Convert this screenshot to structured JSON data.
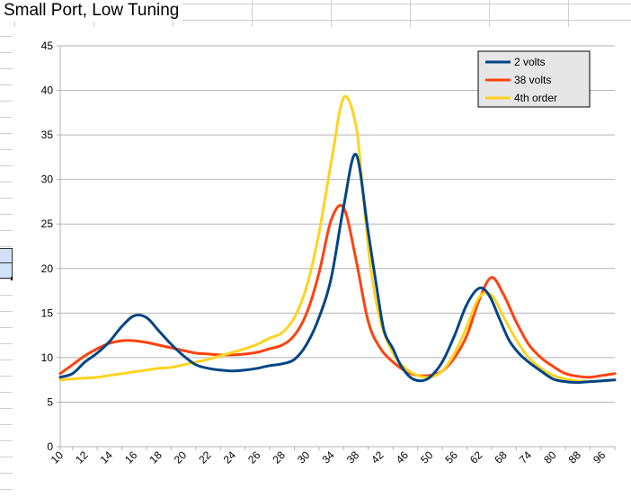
{
  "sheet": {
    "title": "Small Port, Low Tuning"
  },
  "colors": {
    "series_2v": "#004586",
    "series_38v": "#ff420e",
    "series_4th": "#ffd320",
    "gridline": "#b3b3b3",
    "axis": "#b3b3b3",
    "legend_bg": "#e6e6e6"
  },
  "chart_data": {
    "type": "line",
    "title": "",
    "xlabel": "",
    "ylabel": "",
    "ylim": [
      0,
      45
    ],
    "yticks": [
      0,
      5,
      10,
      15,
      20,
      25,
      30,
      35,
      40,
      45
    ],
    "categories": [
      "10",
      "12",
      "14",
      "16",
      "18",
      "20",
      "22",
      "24",
      "26",
      "28",
      "30",
      "34",
      "38",
      "42",
      "46",
      "50",
      "56",
      "62",
      "68",
      "74",
      "80",
      "88",
      "96"
    ],
    "grid": "horizontal",
    "legend": "top-right",
    "series": [
      {
        "name": "2 volts",
        "color": "#004586",
        "x": [
          0,
          0.5,
          1,
          1.5,
          2,
          2.5,
          3,
          3.5,
          4,
          4.5,
          5,
          5.5,
          6,
          6.5,
          7,
          7.5,
          8,
          8.5,
          9,
          9.5,
          10,
          10.5,
          11,
          11.5,
          12,
          12.5,
          13,
          13.2,
          13.5,
          13.8,
          14.2,
          14.6,
          15,
          15.5,
          16,
          16.5,
          17,
          17.4,
          17.8,
          18.2,
          18.6,
          19,
          19.5,
          20,
          20.5,
          21,
          21.5,
          22,
          22.5
        ],
        "values": [
          7.8,
          8.2,
          9.5,
          10.5,
          11.8,
          13.5,
          14.7,
          14.5,
          13.0,
          11.5,
          10.2,
          9.2,
          8.8,
          8.6,
          8.5,
          8.6,
          8.8,
          9.1,
          9.3,
          9.8,
          11.5,
          14.5,
          19.0,
          27.0,
          32.8,
          24.0,
          15.0,
          12.5,
          11.0,
          9.2,
          7.8,
          7.4,
          7.8,
          9.5,
          12.5,
          16.0,
          17.8,
          17.0,
          14.5,
          12.0,
          10.5,
          9.5,
          8.5,
          7.6,
          7.3,
          7.2,
          7.3,
          7.4,
          7.5
        ]
      },
      {
        "name": "38 volts",
        "color": "#ff420e",
        "x": [
          0,
          0.5,
          1,
          1.5,
          2,
          2.5,
          3,
          3.5,
          4,
          4.5,
          5,
          5.5,
          6,
          6.5,
          7,
          7.5,
          8,
          8.5,
          9,
          9.5,
          10,
          10.5,
          11,
          11.5,
          12,
          12.5,
          13,
          13.5,
          14,
          14.5,
          15,
          15.5,
          16,
          16.5,
          17,
          17.5,
          18,
          18.5,
          19,
          19.5,
          20,
          20.5,
          21,
          21.5,
          22,
          22.5
        ],
        "values": [
          8.2,
          9.2,
          10.2,
          11.0,
          11.6,
          11.9,
          11.9,
          11.7,
          11.4,
          11.1,
          10.8,
          10.5,
          10.4,
          10.3,
          10.3,
          10.4,
          10.6,
          11.0,
          11.4,
          12.5,
          15.0,
          19.5,
          25.5,
          26.8,
          21.0,
          14.0,
          11.0,
          9.5,
          8.5,
          8.0,
          8.0,
          8.5,
          10.0,
          12.5,
          16.5,
          19.0,
          17.0,
          14.0,
          11.5,
          10.0,
          9.0,
          8.2,
          7.9,
          7.8,
          8.0,
          8.2
        ]
      },
      {
        "name": "4th order",
        "color": "#ffd320",
        "x": [
          0,
          0.5,
          1,
          1.5,
          2,
          2.5,
          3,
          3.5,
          4,
          4.5,
          5,
          5.5,
          6,
          6.5,
          7,
          7.5,
          8,
          8.5,
          9,
          9.5,
          10,
          10.5,
          11,
          11.5,
          12,
          12.3,
          12.6,
          13,
          13.5,
          14,
          14.5,
          15,
          15.5,
          16,
          16.5,
          17,
          17.5,
          18,
          18.5,
          19,
          19.5,
          20,
          20.5,
          21,
          21.5,
          22,
          22.5
        ],
        "values": [
          7.5,
          7.6,
          7.7,
          7.8,
          8.0,
          8.2,
          8.4,
          8.6,
          8.8,
          8.9,
          9.2,
          9.5,
          9.8,
          10.2,
          10.6,
          11.0,
          11.5,
          12.2,
          12.8,
          14.5,
          18.0,
          24.0,
          32.0,
          39.2,
          36.0,
          28.0,
          20.0,
          14.0,
          10.5,
          8.8,
          8.0,
          7.8,
          8.5,
          10.5,
          13.5,
          16.8,
          17.0,
          14.5,
          12.0,
          10.0,
          8.8,
          8.0,
          7.6,
          7.4,
          7.3,
          7.4,
          7.5
        ]
      }
    ]
  }
}
